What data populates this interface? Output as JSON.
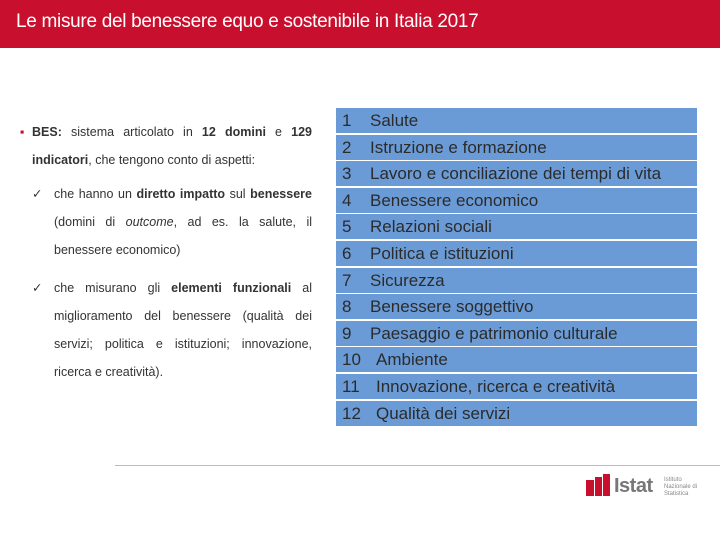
{
  "header": {
    "title": "Le misure del benessere equo e sostenibile in Italia 2017"
  },
  "intro": {
    "runs": [
      {
        "text": "BES:",
        "bold": true
      },
      {
        "text": " sistema articolato in "
      },
      {
        "text": "12 domini",
        "bold": true
      },
      {
        "text": " e "
      },
      {
        "text": "129 indicatori",
        "bold": true
      },
      {
        "text": ", che tengono conto di aspetti:"
      }
    ]
  },
  "points": [
    {
      "runs": [
        {
          "text": "che hanno un "
        },
        {
          "text": "diretto impatto",
          "bold": true
        },
        {
          "text": " sul "
        },
        {
          "text": "benessere",
          "bold": true
        },
        {
          "text": " (domini di "
        },
        {
          "text": "outcome",
          "italic": true
        },
        {
          "text": ", ad es. la salute, il benessere economico)"
        }
      ]
    },
    {
      "runs": [
        {
          "text": "che misurano gli "
        },
        {
          "text": "elementi funzionali",
          "bold": true
        },
        {
          "text": " al miglioramento del benessere (qualità dei servizi; politica e istituzioni; innovazione, ricerca e creatività)."
        }
      ]
    }
  ],
  "domains": [
    {
      "number": 1,
      "label": "Salute"
    },
    {
      "number": 2,
      "label": "Istruzione e formazione"
    },
    {
      "number": 3,
      "label": "Lavoro e conciliazione dei tempi di vita"
    },
    {
      "number": 4,
      "label": "Benessere economico"
    },
    {
      "number": 5,
      "label": "Relazioni sociali"
    },
    {
      "number": 6,
      "label": "Politica e istituzioni"
    },
    {
      "number": 7,
      "label": "Sicurezza"
    },
    {
      "number": 8,
      "label": "Benessere soggettivo"
    },
    {
      "number": 9,
      "label": "Paesaggio e patrimonio culturale"
    },
    {
      "number": 10,
      "label": "Ambiente"
    },
    {
      "number": 11,
      "label": "Innovazione, ricerca e creatività"
    },
    {
      "number": 12,
      "label": "Qualità dei servizi"
    }
  ],
  "logo": {
    "name": "Istat",
    "subtitle": "Istituto Nazionale di Statistica"
  }
}
